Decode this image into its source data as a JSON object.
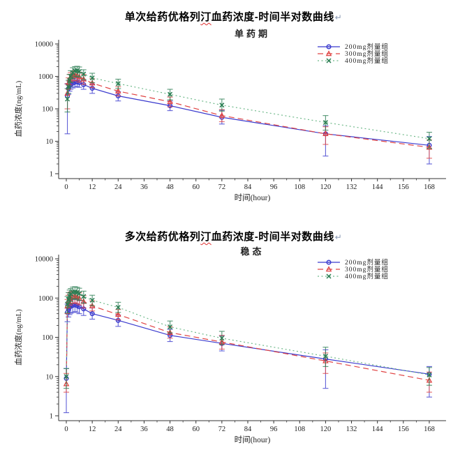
{
  "titles": {
    "single": {
      "prefix": "单次给药优格列",
      "wavy": "汀",
      "suffix": "血药浓度-时间半对数曲线",
      "return_mark": "↵"
    },
    "multiple": {
      "prefix": "多次给药优格列",
      "wavy": "汀",
      "suffix": "血药浓度-时间半对数曲线",
      "return_mark": "↵"
    }
  },
  "chart_data": [
    {
      "type": "line",
      "title": "单药期",
      "xlabel": "时间(hour)",
      "ylabel": "血药浓度(ng/mL)",
      "yscale": "log",
      "ylim": [
        1,
        10000
      ],
      "xlim": [
        0,
        168
      ],
      "x_ticks": [
        0,
        12,
        24,
        36,
        48,
        60,
        72,
        84,
        96,
        108,
        120,
        132,
        144,
        156,
        168
      ],
      "y_ticks": [
        1,
        10,
        100,
        1000,
        10000
      ],
      "legend_position": "top-right",
      "point_format": [
        "time_h",
        "mean",
        "err_low",
        "err_high"
      ],
      "series": [
        {
          "name": "200mg剂量组",
          "color": "#3a3ace",
          "line_style": "solid",
          "marker": "open-circle",
          "points": [
            [
              0.5,
              250,
              17,
              580
            ],
            [
              1,
              420,
              280,
              600
            ],
            [
              1.5,
              520,
              350,
              700
            ],
            [
              2,
              570,
              400,
              760
            ],
            [
              3,
              620,
              440,
              820
            ],
            [
              4,
              660,
              470,
              880
            ],
            [
              5,
              680,
              490,
              900
            ],
            [
              6,
              640,
              460,
              850
            ],
            [
              8,
              560,
              400,
              750
            ],
            [
              12,
              430,
              300,
              580
            ],
            [
              24,
              250,
              175,
              340
            ],
            [
              48,
              125,
              88,
              175
            ],
            [
              72,
              55,
              34,
              90
            ],
            [
              120,
              17,
              3.5,
              30
            ],
            [
              168,
              7.5,
              2,
              14
            ]
          ]
        },
        {
          "name": "300mg剂量组",
          "color": "#e04343",
          "line_style": "dashed",
          "marker": "open-triangle",
          "points": [
            [
              0.5,
              300,
              100,
              600
            ],
            [
              1,
              620,
              400,
              900
            ],
            [
              1.5,
              820,
              550,
              1150
            ],
            [
              2,
              950,
              650,
              1300
            ],
            [
              3,
              1050,
              720,
              1450
            ],
            [
              4,
              1100,
              760,
              1500
            ],
            [
              5,
              1060,
              730,
              1450
            ],
            [
              6,
              960,
              660,
              1350
            ],
            [
              8,
              820,
              570,
              1150
            ],
            [
              12,
              620,
              450,
              850
            ],
            [
              24,
              350,
              250,
              480
            ],
            [
              48,
              165,
              115,
              230
            ],
            [
              72,
              62,
              40,
              95
            ],
            [
              120,
              17,
              8,
              28
            ],
            [
              168,
              6.5,
              3,
              11
            ]
          ]
        },
        {
          "name": "400mg剂量组",
          "color": "#6fb98a",
          "marker_color": "#2a7d52",
          "line_style": "dotted",
          "marker": "x-cross",
          "points": [
            [
              0.5,
              200,
              80,
              420
            ],
            [
              1,
              480,
              300,
              760
            ],
            [
              1.5,
              750,
              480,
              1150
            ],
            [
              2,
              1000,
              650,
              1500
            ],
            [
              3,
              1300,
              850,
              1850
            ],
            [
              4,
              1480,
              980,
              2000
            ],
            [
              5,
              1520,
              1020,
              2050
            ],
            [
              6,
              1420,
              950,
              1950
            ],
            [
              8,
              1180,
              800,
              1600
            ],
            [
              12,
              900,
              640,
              1250
            ],
            [
              24,
              600,
              420,
              820
            ],
            [
              48,
              280,
              190,
              400
            ],
            [
              72,
              130,
              85,
              200
            ],
            [
              120,
              38,
              22,
              62
            ],
            [
              168,
              12,
              6,
              19
            ]
          ]
        }
      ]
    },
    {
      "type": "line",
      "title": "稳态",
      "xlabel": "时间(hour)",
      "ylabel": "血药浓度(ng/mL)",
      "yscale": "log",
      "ylim": [
        1,
        10000
      ],
      "xlim": [
        0,
        168
      ],
      "x_ticks": [
        0,
        12,
        24,
        36,
        48,
        60,
        72,
        84,
        96,
        108,
        120,
        132,
        144,
        156,
        168
      ],
      "y_ticks": [
        1,
        10,
        100,
        1000,
        10000
      ],
      "legend_position": "top-right",
      "point_format": [
        "time_h",
        "mean",
        "err_low",
        "err_high"
      ],
      "series": [
        {
          "name": "200mg剂量组",
          "color": "#3a3ace",
          "line_style": "solid",
          "marker": "open-circle",
          "points": [
            [
              0,
              9,
              1.2,
              16
            ],
            [
              0.5,
              430,
              250,
              700
            ],
            [
              1,
              520,
              330,
              780
            ],
            [
              1.5,
              580,
              380,
              850
            ],
            [
              2,
              620,
              410,
              900
            ],
            [
              3,
              650,
              430,
              940
            ],
            [
              4,
              670,
              450,
              960
            ],
            [
              5,
              640,
              430,
              920
            ],
            [
              6,
              600,
              400,
              860
            ],
            [
              8,
              530,
              360,
              760
            ],
            [
              12,
              400,
              290,
              560
            ],
            [
              24,
              270,
              190,
              370
            ],
            [
              48,
              112,
              78,
              160
            ],
            [
              72,
              70,
              45,
              110
            ],
            [
              120,
              28,
              5,
              48
            ],
            [
              168,
              11.5,
              3,
              18
            ]
          ]
        },
        {
          "name": "300mg剂量组",
          "color": "#e04343",
          "line_style": "dashed",
          "marker": "open-triangle",
          "points": [
            [
              0,
              6.5,
              4,
              12
            ],
            [
              0.5,
              620,
              400,
              920
            ],
            [
              1,
              820,
              560,
              1180
            ],
            [
              1.5,
              960,
              650,
              1350
            ],
            [
              2,
              1030,
              700,
              1430
            ],
            [
              3,
              1090,
              740,
              1500
            ],
            [
              4,
              1110,
              760,
              1520
            ],
            [
              5,
              1060,
              720,
              1460
            ],
            [
              6,
              980,
              670,
              1360
            ],
            [
              8,
              820,
              560,
              1150
            ],
            [
              12,
              630,
              470,
              850
            ],
            [
              24,
              380,
              280,
              510
            ],
            [
              48,
              132,
              95,
              185
            ],
            [
              72,
              76,
              50,
              112
            ],
            [
              120,
              25,
              12,
              40
            ],
            [
              168,
              8,
              4,
              13
            ]
          ]
        },
        {
          "name": "400mg剂量组",
          "color": "#6fb98a",
          "marker_color": "#2a7d52",
          "line_style": "dotted",
          "marker": "x-cross",
          "points": [
            [
              0,
              10,
              5,
              16
            ],
            [
              0.5,
              700,
              420,
              1100
            ],
            [
              1,
              920,
              580,
              1380
            ],
            [
              1.5,
              1120,
              720,
              1600
            ],
            [
              2,
              1260,
              820,
              1750
            ],
            [
              3,
              1400,
              920,
              1900
            ],
            [
              4,
              1440,
              960,
              1950
            ],
            [
              5,
              1390,
              930,
              1880
            ],
            [
              6,
              1300,
              870,
              1780
            ],
            [
              8,
              1100,
              740,
              1500
            ],
            [
              12,
              880,
              640,
              1180
            ],
            [
              24,
              580,
              430,
              780
            ],
            [
              48,
              185,
              130,
              260
            ],
            [
              72,
              95,
              65,
              142
            ],
            [
              120,
              33,
              18,
              56
            ],
            [
              168,
              11,
              6,
              17
            ]
          ]
        }
      ]
    }
  ]
}
